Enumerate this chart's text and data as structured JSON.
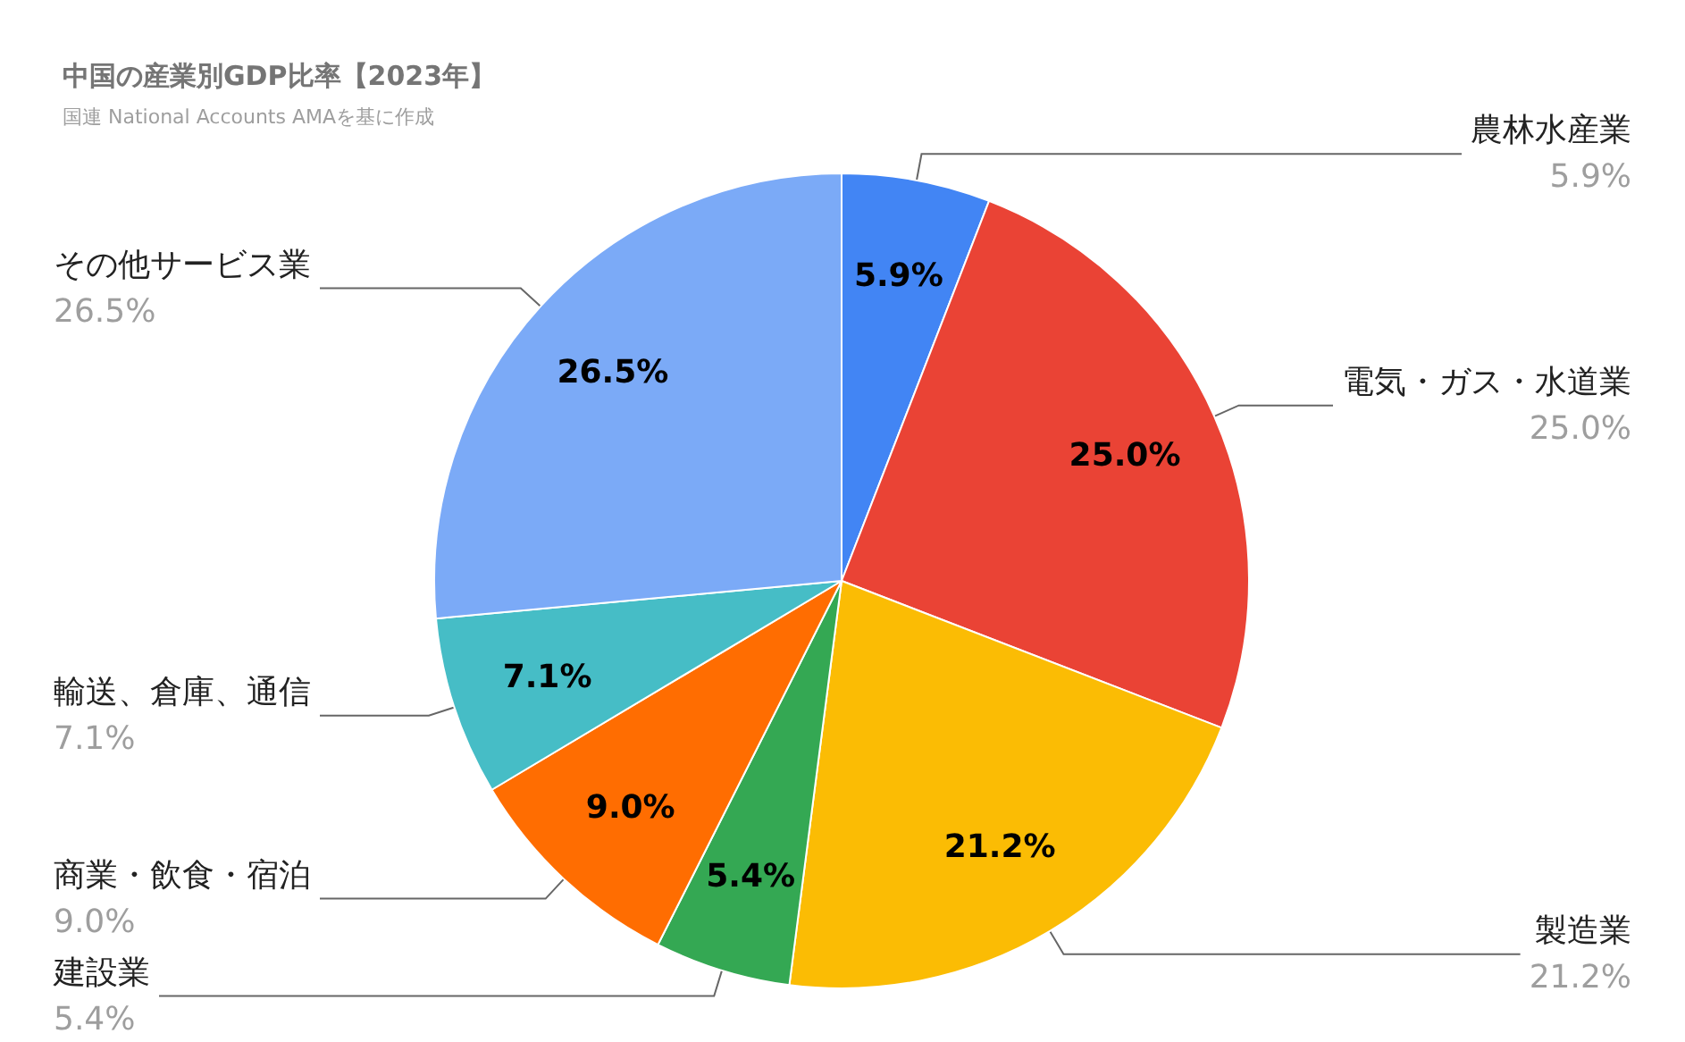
{
  "chart_data": {
    "type": "pie",
    "title": "中国の産業別GDP比率【2023年】",
    "subtitle": "国連 National Accounts AMAを基に作成",
    "categories": [
      "農林水産業",
      "電気・ガス・水道業",
      "製造業",
      "建設業",
      "商業・飲食・宿泊",
      "輸送、倉庫、通信",
      "その他サービス業"
    ],
    "values": [
      5.9,
      25.0,
      21.2,
      5.4,
      9.0,
      7.1,
      26.5
    ],
    "value_labels": [
      "5.9%",
      "25.0%",
      "21.2%",
      "5.4%",
      "9.0%",
      "7.1%",
      "26.5%"
    ],
    "colors": [
      "#4285f4",
      "#ea4335",
      "#fbbc04",
      "#34a853",
      "#ff6d01",
      "#46bdc6",
      "#7baaf7"
    ],
    "legend": false
  }
}
